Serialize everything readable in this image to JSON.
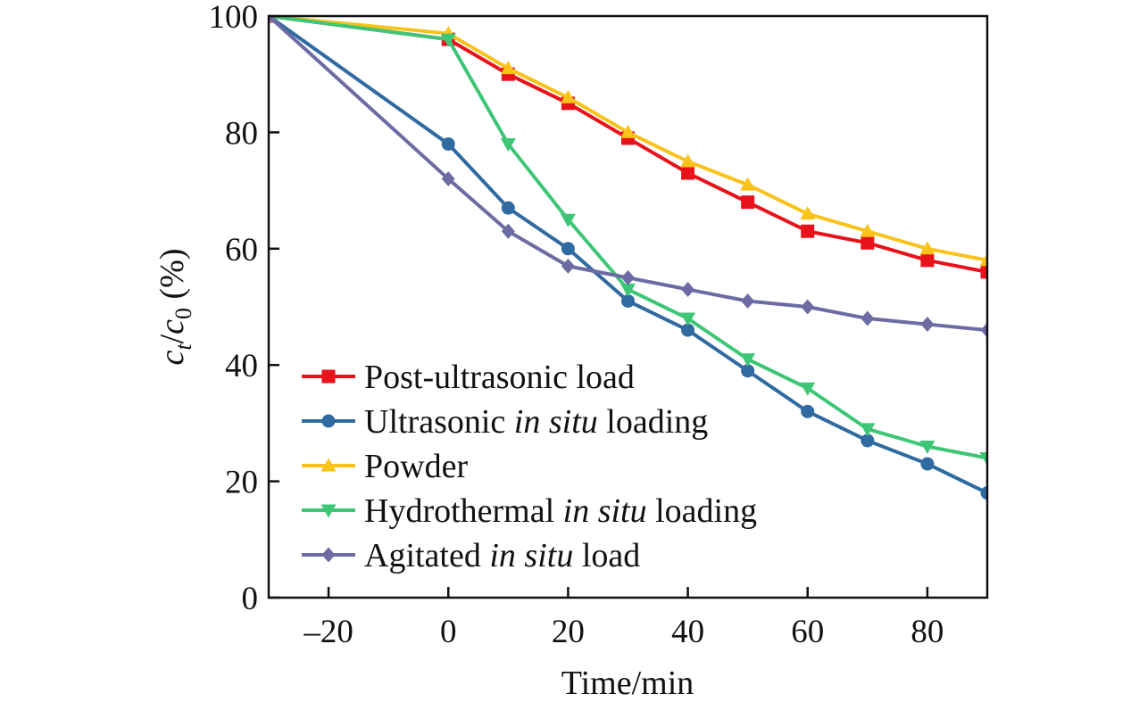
{
  "chart_data": {
    "type": "line",
    "title": "",
    "xlabel": "Time/min",
    "ylabel": {
      "c": "c",
      "sub_t": "t",
      "slash": "/",
      "c0": "c",
      "sub_0": "0",
      "unit": " (%)"
    },
    "xlim": [
      -30,
      90
    ],
    "ylim": [
      0,
      100
    ],
    "xticks": [
      -20,
      0,
      20,
      40,
      60,
      80
    ],
    "xtick_labels": [
      "–20",
      "0",
      "20",
      "40",
      "60",
      "80"
    ],
    "yticks": [
      0,
      20,
      40,
      60,
      80,
      100
    ],
    "ytick_labels": [
      "0",
      "20",
      "40",
      "60",
      "80",
      "100"
    ],
    "grid": false,
    "legend_position": "bottom-left",
    "x": [
      -30,
      0,
      10,
      20,
      30,
      40,
      50,
      60,
      70,
      80,
      90
    ],
    "series": [
      {
        "name": "Post-ultrasonic load",
        "name_parts": [
          [
            "Post-ultrasonic load",
            false
          ]
        ],
        "color": "#e8121b",
        "marker": "square",
        "values": [
          100,
          96,
          90,
          85,
          79,
          73,
          68,
          63,
          61,
          58,
          56
        ]
      },
      {
        "name": "Ultrasonic in situ loading",
        "name_parts": [
          [
            "Ultrasonic ",
            false
          ],
          [
            "in situ",
            true
          ],
          [
            " loading",
            false
          ]
        ],
        "color": "#2f6aa1",
        "marker": "circle",
        "values": [
          100,
          78,
          67,
          60,
          51,
          46,
          39,
          32,
          27,
          23,
          18
        ]
      },
      {
        "name": "Powder",
        "name_parts": [
          [
            "Powder",
            false
          ]
        ],
        "color": "#f9c31b",
        "marker": "triangle-up",
        "values": [
          100,
          97,
          91,
          86,
          80,
          75,
          71,
          66,
          63,
          60,
          58
        ]
      },
      {
        "name": "Hydrothermal in situ loading",
        "name_parts": [
          [
            "Hydrothermal ",
            false
          ],
          [
            "in situ",
            true
          ],
          [
            " loading",
            false
          ]
        ],
        "color": "#3ec677",
        "marker": "triangle-down",
        "values": [
          100,
          96,
          78,
          65,
          53,
          48,
          41,
          36,
          29,
          26,
          24
        ]
      },
      {
        "name": "Agitated in situ load",
        "name_parts": [
          [
            "Agitated ",
            false
          ],
          [
            "in situ",
            true
          ],
          [
            " load",
            false
          ]
        ],
        "color": "#6c6ba3",
        "marker": "diamond",
        "values": [
          100,
          72,
          63,
          57,
          55,
          53,
          51,
          50,
          48,
          47,
          46
        ]
      }
    ]
  }
}
